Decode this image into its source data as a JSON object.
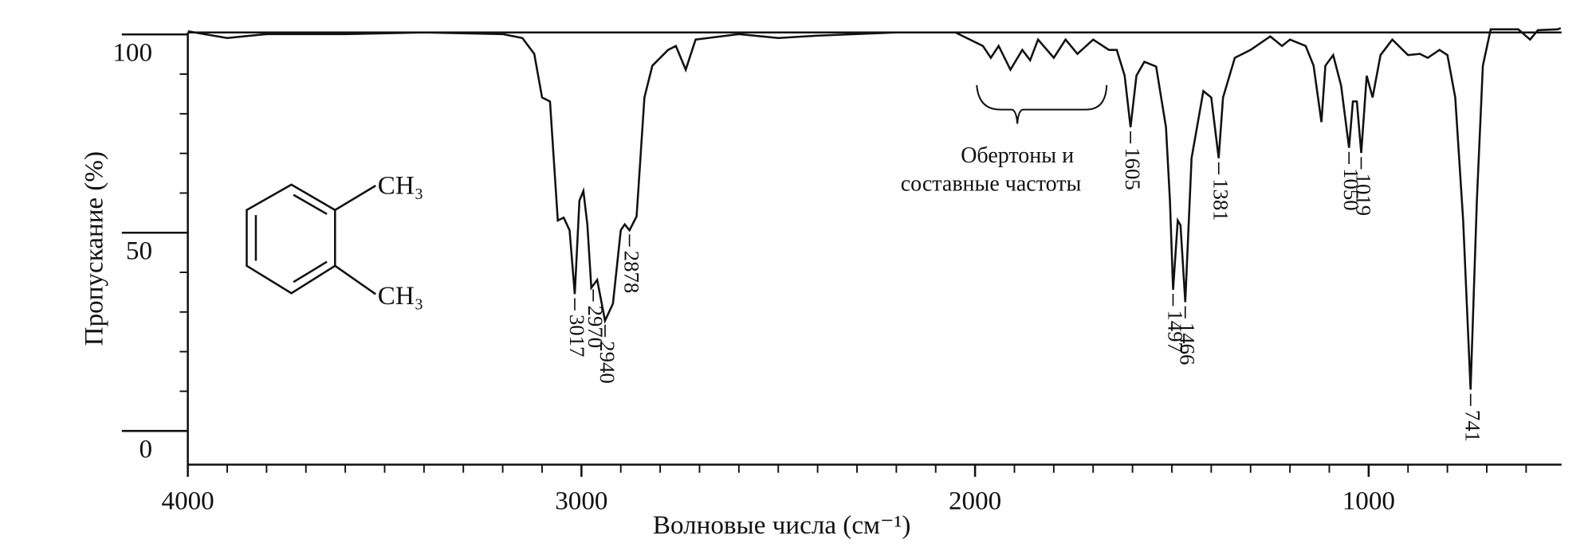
{
  "chart_data": {
    "type": "line",
    "x_label": "Волновые числа (см⁻¹)",
    "y_label": "Пропускание (%)",
    "xlim": [
      4000,
      510
    ],
    "ylim": [
      -8.5,
      100.5
    ],
    "xticks": [
      4000,
      3000,
      2000,
      1000
    ],
    "yticks": [
      0,
      50,
      100
    ],
    "minor_xticks": [
      3900,
      3800,
      3700,
      3600,
      3500,
      3400,
      3300,
      3200,
      3100,
      2900,
      2800,
      2700,
      2600,
      2500,
      2400,
      2300,
      2200,
      2100,
      1900,
      1800,
      1700,
      1600,
      1500,
      1400,
      1300,
      1200,
      1100,
      900,
      800,
      700,
      600
    ],
    "minor_yticks": [
      10,
      20,
      30,
      40,
      60,
      70,
      80,
      90
    ],
    "color": "#111111",
    "x": [
      4000,
      3900,
      3800,
      3600,
      3400,
      3200,
      3150,
      3120,
      3100,
      3080,
      3060,
      3045,
      3030,
      3017,
      3005,
      2995,
      2985,
      2975,
      2960,
      2940,
      2920,
      2900,
      2890,
      2878,
      2860,
      2840,
      2820,
      2780,
      2760,
      2735,
      2710,
      2600,
      2500,
      2400,
      2200,
      2050,
      1980,
      1960,
      1940,
      1910,
      1880,
      1860,
      1840,
      1800,
      1770,
      1740,
      1700,
      1660,
      1640,
      1620,
      1605,
      1590,
      1570,
      1540,
      1515,
      1505,
      1497,
      1485,
      1478,
      1466,
      1450,
      1420,
      1400,
      1381,
      1370,
      1340,
      1300,
      1250,
      1220,
      1200,
      1160,
      1140,
      1120,
      1110,
      1090,
      1070,
      1050,
      1040,
      1030,
      1019,
      1005,
      990,
      970,
      940,
      900,
      870,
      850,
      820,
      800,
      780,
      760,
      741,
      725,
      710,
      690,
      620,
      590,
      570,
      520,
      512
    ],
    "values": [
      100.8,
      99.1,
      100.1,
      100.1,
      100.5,
      100.1,
      99.1,
      95.1,
      84.1,
      83.1,
      53.1,
      53.8,
      50.6,
      34.5,
      58.1,
      60.5,
      52.1,
      36.1,
      38.1,
      27.8,
      32.1,
      50.6,
      52.1,
      50.6,
      54.1,
      84.1,
      92.1,
      96.1,
      97.1,
      91.1,
      98.7,
      100.1,
      99.1,
      99.7,
      100.5,
      100.5,
      97.1,
      94.1,
      97.1,
      91.1,
      96.1,
      93.5,
      98.7,
      94.1,
      98.7,
      95.1,
      98.7,
      96.1,
      96.1,
      89.6,
      76.6,
      89.6,
      93.1,
      91.9,
      76.6,
      58.1,
      35.6,
      53.1,
      51.9,
      32.5,
      68.8,
      85.7,
      84.1,
      68.8,
      84.1,
      94.1,
      96.1,
      99.5,
      97.1,
      98.7,
      97.1,
      92.1,
      77.9,
      92.1,
      94.8,
      87.1,
      71.4,
      83.1,
      83.1,
      70.1,
      89.6,
      84.1,
      94.8,
      98.7,
      94.8,
      95.1,
      94.1,
      96.1,
      94.8,
      84.1,
      53.1,
      10.4,
      58.1,
      92.1,
      101.3,
      101.3,
      98.7,
      101.1,
      101.3,
      101.6
    ],
    "peak_labels": [
      3017,
      2970,
      2940,
      2878,
      1605,
      1497,
      1466,
      1381,
      1050,
      1019,
      741
    ],
    "annotation": [
      "Обертоны и",
      "составные частоты"
    ],
    "structure_labels": [
      "CH₃",
      "CH₃"
    ]
  }
}
